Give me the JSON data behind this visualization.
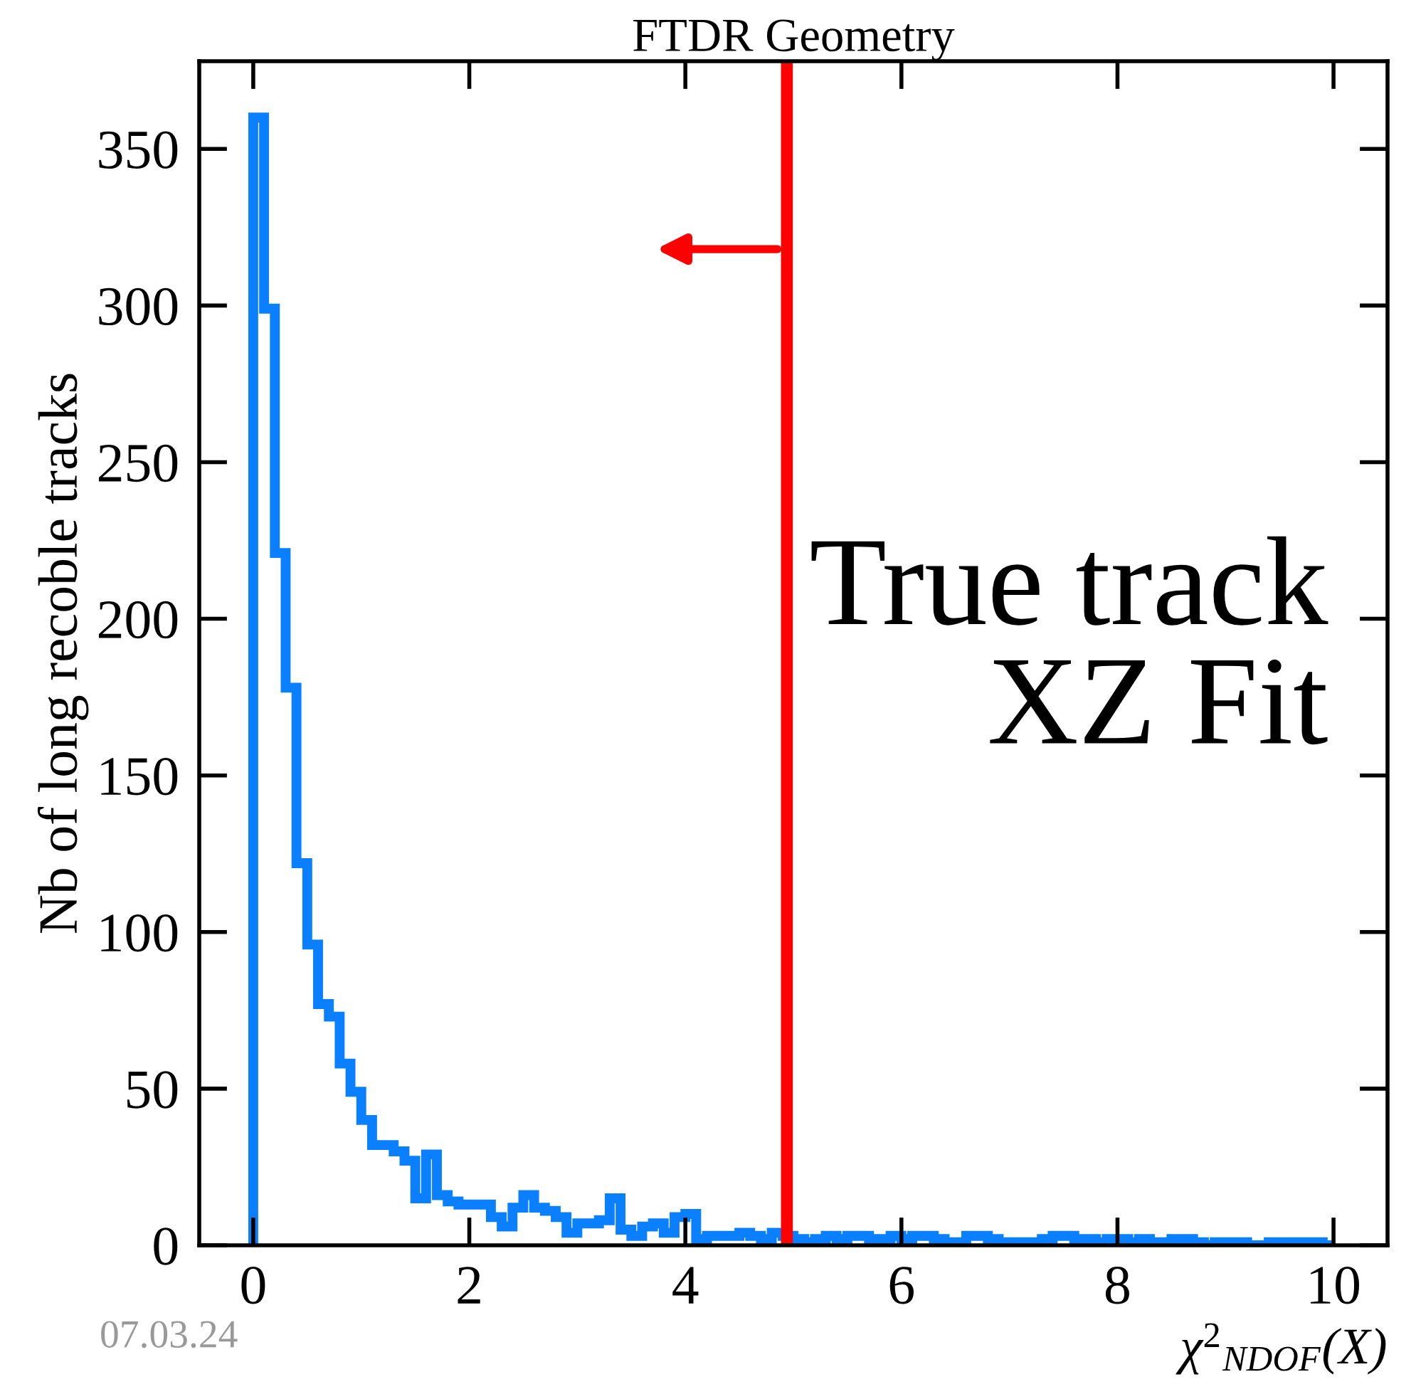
{
  "chart_data": {
    "type": "histogram",
    "title": "FTDR Geometry",
    "xlabel": "χ$^{2}$$_{NDOF}$(X)",
    "ylabel": "Nb of long recoble tracks",
    "bins": [
      0,
      0.1,
      0.2,
      0.3,
      0.4,
      0.5,
      0.6,
      0.7,
      0.8,
      0.9,
      1,
      1.1,
      1.2,
      1.3,
      1.4,
      1.5,
      1.6,
      1.7,
      1.8,
      1.9,
      2,
      2.1,
      2.2,
      2.3,
      2.4,
      2.5,
      2.6,
      2.7,
      2.8,
      2.9,
      3,
      3.1,
      3.2,
      3.3,
      3.4,
      3.5,
      3.6,
      3.7,
      3.8,
      3.9,
      4,
      4.1,
      4.2,
      4.3,
      4.4,
      4.5,
      4.6,
      4.7,
      4.8,
      4.9,
      5,
      5.1,
      5.2,
      5.3,
      5.4,
      5.5,
      5.6,
      5.7,
      5.8,
      5.9,
      6,
      6.1,
      6.2,
      6.3,
      6.4,
      6.5,
      6.6,
      6.7,
      6.8,
      6.9,
      7,
      7.1,
      7.2,
      7.3,
      7.4,
      7.5,
      7.6,
      7.7,
      7.8,
      7.9,
      8,
      8.1,
      8.2,
      8.3,
      8.4,
      8.5,
      8.6,
      8.7,
      8.8,
      8.9,
      9,
      9.1,
      9.2,
      9.3,
      9.4,
      9.5,
      9.6,
      9.7,
      9.8,
      9.9,
      10
    ],
    "values": [
      360,
      299,
      221,
      178,
      122,
      96,
      77,
      73,
      58,
      49,
      40,
      32,
      32,
      30,
      27,
      15,
      29,
      16,
      14,
      13,
      13,
      13,
      9,
      6,
      12,
      16,
      12,
      11,
      9,
      4,
      7,
      7,
      8,
      15,
      5,
      3,
      6,
      7,
      4,
      9,
      10,
      2,
      3,
      3,
      3,
      4,
      3,
      2,
      4,
      3,
      2,
      1,
      2,
      3,
      2,
      3,
      3,
      2,
      2,
      3,
      2,
      3,
      3,
      2,
      1,
      1,
      3,
      3,
      2,
      1,
      1,
      1,
      1,
      2,
      3,
      3,
      2,
      2,
      1,
      2,
      2,
      1,
      2,
      1,
      1,
      2,
      2,
      1,
      0,
      1,
      1,
      1,
      0,
      0,
      1,
      1,
      1,
      1,
      1,
      0
    ],
    "color": "#0a7fff",
    "xlim": [
      -0.5,
      10.5
    ],
    "ylim": [
      0,
      378
    ],
    "xticks": [
      0,
      2,
      4,
      6,
      8,
      10
    ],
    "yticks": [
      0,
      50,
      100,
      150,
      200,
      250,
      300,
      350
    ],
    "ref_lines": [
      {
        "axis": "x",
        "value": 4.94,
        "color": "#ff0000"
      }
    ],
    "annotations": [
      {
        "text": "True track\nXZ Fit"
      },
      {
        "text": "07.03.24"
      }
    ],
    "grid": false,
    "legend": false
  }
}
